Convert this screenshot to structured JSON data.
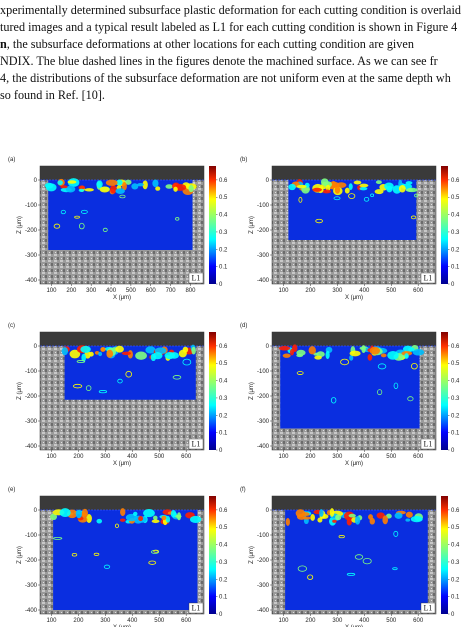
{
  "paragraph": {
    "lines": [
      "xperimentally determined subsurface plastic deformation for each cutting condition is overlaid",
      "tured images and a typical result labeled as L1 for each cutting condition is shown in Figure 4",
      {
        "bold": "n",
        "rest": ", the subsurface deformations at other locations for each cutting condition are given"
      },
      "NDIX. The blue dashed lines in the figures denote the machined surface. As we can see fr",
      "4, the distributions of the subsurface deformation are not uniform even at the same depth wh",
      "so found in Ref. [10]."
    ]
  },
  "figure": {
    "y_label": "Z (μm)",
    "x_label": "X (μm)",
    "yticks": [
      0,
      -100,
      -200,
      -300,
      -400
    ],
    "colorbar_ticks": [
      0,
      0.1,
      0.2,
      0.3,
      0.4,
      0.5,
      0.6
    ],
    "panels": [
      {
        "label": "(a)",
        "tag": "L1",
        "xticks": [
          100,
          200,
          300,
          400,
          500,
          600,
          700,
          800
        ]
      },
      {
        "label": "(b)",
        "tag": "L1",
        "xticks": [
          100,
          200,
          300,
          400,
          500,
          600
        ]
      },
      {
        "label": "(c)",
        "tag": "L1",
        "xticks": [
          100,
          200,
          300,
          400,
          500,
          600
        ]
      },
      {
        "label": "(d)",
        "tag": "L1",
        "xticks": [
          100,
          200,
          300,
          400,
          500,
          600
        ]
      },
      {
        "label": "(e)",
        "tag": "L1",
        "xticks": [
          100,
          200,
          300,
          400,
          500,
          600
        ]
      },
      {
        "label": "(f)",
        "tag": "L1",
        "xticks": [
          100,
          200,
          300,
          400,
          500,
          600
        ]
      }
    ]
  }
}
